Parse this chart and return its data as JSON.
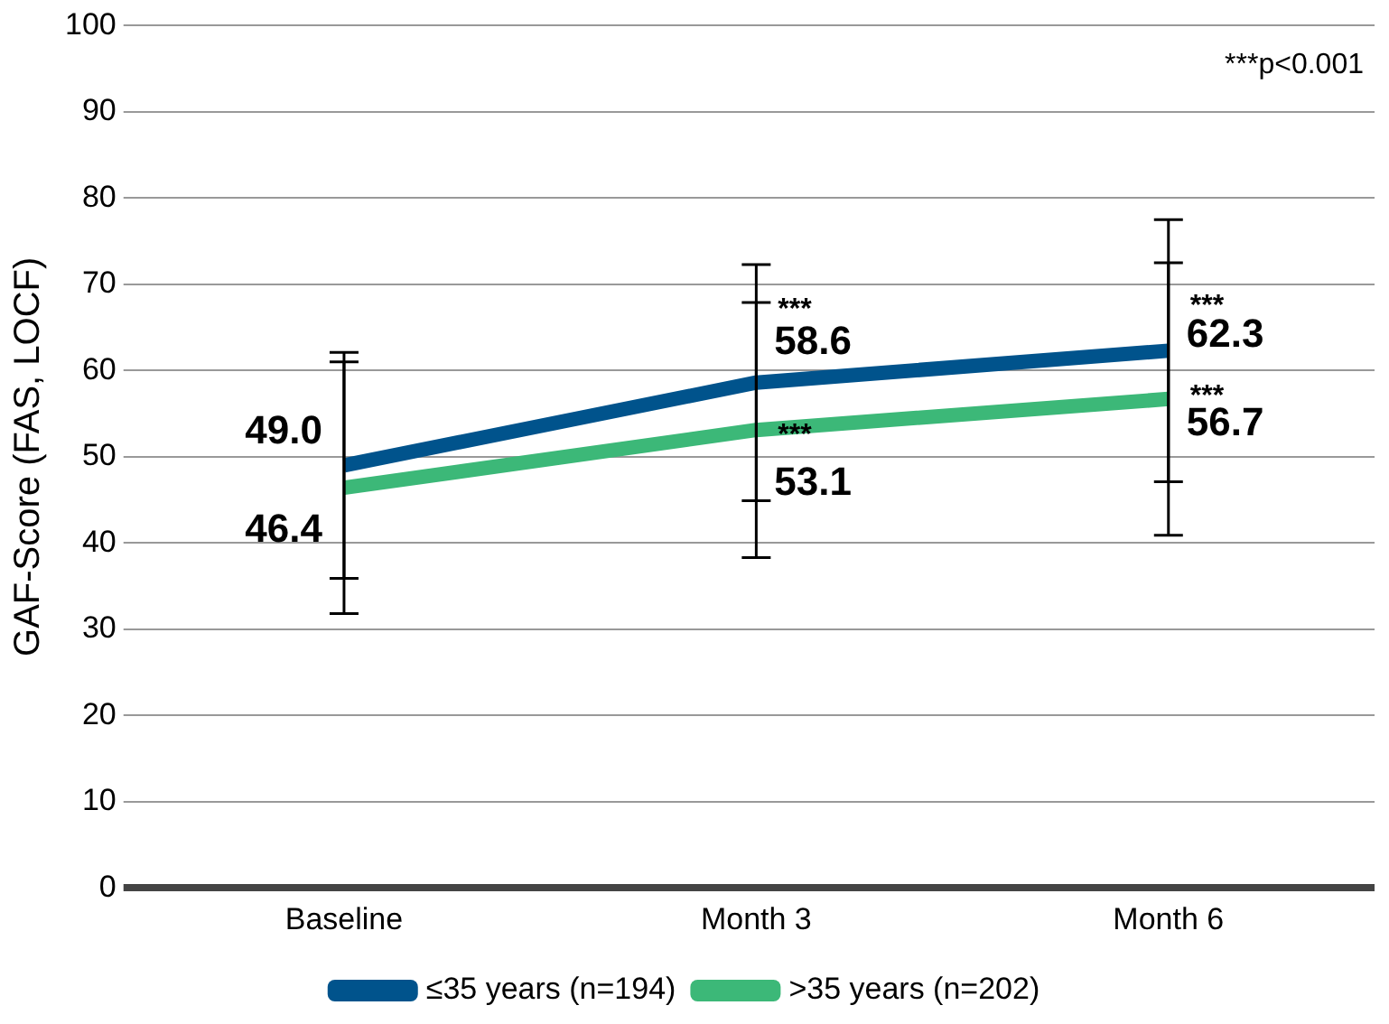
{
  "chart_data": {
    "type": "line",
    "ylabel": "GAF-Score (FAS, LOCF)",
    "categories": [
      "Baseline",
      "Month 3",
      "Month 6"
    ],
    "series": [
      {
        "name": "≤35 years (n=194)",
        "color": "#00538c",
        "values": [
          49.0,
          58.6,
          62.3
        ],
        "value_labels": [
          "49.0",
          "58.6",
          "62.3"
        ],
        "errors": [
          13.1,
          13.7,
          15.2
        ]
      },
      {
        "name": ">35 years (n=202)",
        "color": "#3cb878",
        "values": [
          46.4,
          53.1,
          56.7
        ],
        "value_labels": [
          "46.4",
          "53.1",
          "56.7"
        ],
        "errors": [
          14.6,
          14.8,
          15.8
        ]
      }
    ],
    "ylim": [
      0,
      100
    ],
    "yticks": [
      0,
      10,
      20,
      30,
      40,
      50,
      60,
      70,
      80,
      90,
      100
    ],
    "grid": "y",
    "legend": "bottom",
    "marker": "none",
    "line_style": "solid",
    "annotations": [
      "***p<0.001",
      {
        "text": "***",
        "x": "Month 3",
        "y": 67
      },
      {
        "text": "***",
        "x": "Month 3",
        "y": 52.5
      },
      {
        "text": "***",
        "x": "Month 6",
        "y": 67.5
      },
      {
        "text": "***",
        "x": "Month 6",
        "y": 57
      }
    ]
  }
}
